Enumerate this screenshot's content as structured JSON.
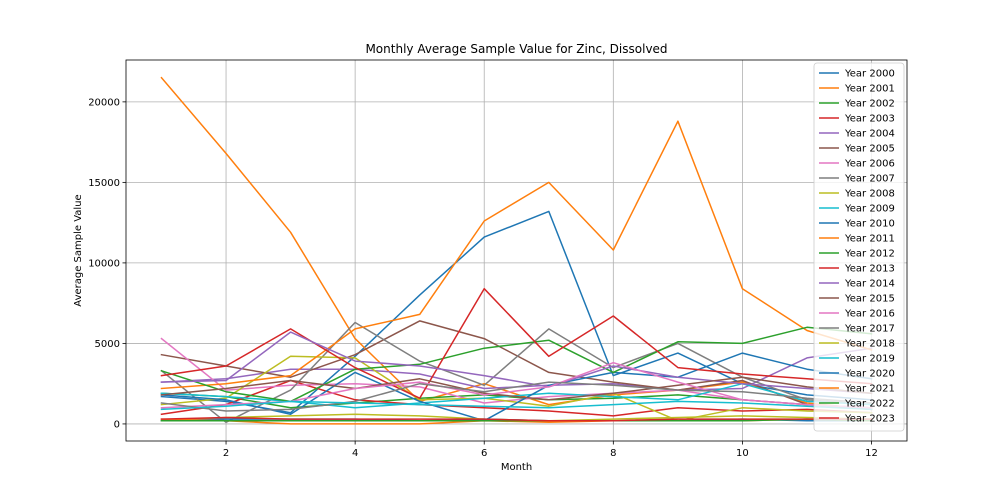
{
  "chart_data": {
    "type": "line",
    "title": "Monthly Average Sample Value for Zinc, Dissolved",
    "xlabel": "Month",
    "ylabel": "Average Sample Value",
    "xlim": [
      0.45,
      12.55
    ],
    "ylim": [
      -1060,
      22600
    ],
    "xticks": [
      2,
      4,
      6,
      8,
      10,
      12
    ],
    "yticks": [
      0,
      5000,
      10000,
      15000,
      20000
    ],
    "grid": true,
    "legend_position": "upper right",
    "x": [
      1,
      2,
      3,
      4,
      5,
      6,
      7,
      8,
      9,
      10,
      11,
      12
    ],
    "series": [
      {
        "name": "Year 2000",
        "color": "#1f77b4",
        "values": [
          1700,
          1400,
          700,
          4200,
          8000,
          11600,
          13200,
          3000,
          4400,
          2500,
          1800,
          1500
        ]
      },
      {
        "name": "Year 2001",
        "color": "#ff7f0e",
        "values": [
          21500,
          16800,
          11900,
          5300,
          1400,
          2500,
          1200,
          1800,
          2100,
          2600,
          1300,
          900
        ]
      },
      {
        "name": "Year 2002",
        "color": "#2ca02c",
        "values": [
          1900,
          1700,
          1000,
          1300,
          1600,
          1800,
          1500,
          1600,
          1800,
          1500,
          1200,
          1000
        ]
      },
      {
        "name": "Year 2003",
        "color": "#d62728",
        "values": [
          600,
          1200,
          2700,
          1500,
          1200,
          1000,
          800,
          500,
          1000,
          800,
          900,
          700
        ]
      },
      {
        "name": "Year 2004",
        "color": "#9467bd",
        "values": [
          2600,
          2800,
          3400,
          3400,
          3100,
          2200,
          2400,
          2500,
          2100,
          2200,
          4100,
          4700
        ]
      },
      {
        "name": "Year 2005",
        "color": "#8c564b",
        "values": [
          4300,
          3600,
          2900,
          4300,
          6400,
          5300,
          3200,
          2600,
          2100,
          2700,
          1200,
          900
        ]
      },
      {
        "name": "Year 2006",
        "color": "#e377c2",
        "values": [
          5300,
          2100,
          2400,
          2500,
          2300,
          1300,
          1700,
          1900,
          2100,
          1500,
          1200,
          1000
        ]
      },
      {
        "name": "Year 2007",
        "color": "#7f7f7f",
        "values": [
          3300,
          100,
          2100,
          6300,
          3900,
          2400,
          5900,
          3500,
          5000,
          2900,
          1500,
          1200
        ]
      },
      {
        "name": "Year 2008",
        "color": "#bcbd22",
        "values": [
          1200,
          1600,
          4200,
          4100,
          1500,
          1600,
          1100,
          1900,
          200,
          1000,
          800,
          700
        ]
      },
      {
        "name": "Year 2009",
        "color": "#17becf",
        "values": [
          1900,
          1700,
          1400,
          1000,
          1300,
          1600,
          1900,
          1700,
          1500,
          2500,
          1400,
          1200
        ]
      },
      {
        "name": "Year 2010",
        "color": "#1f77b4",
        "values": [
          1800,
          1500,
          600,
          3200,
          1400,
          200,
          2400,
          3200,
          2900,
          4400,
          3400,
          2800
        ]
      },
      {
        "name": "Year 2011",
        "color": "#ff7f0e",
        "values": [
          2200,
          2500,
          3000,
          5900,
          6800,
          12600,
          15000,
          10800,
          18800,
          8400,
          5800,
          4600
        ]
      },
      {
        "name": "Year 2012",
        "color": "#2ca02c",
        "values": [
          3300,
          2000,
          1400,
          3400,
          3700,
          4700,
          5200,
          3200,
          5100,
          5000,
          6000,
          5600
        ]
      },
      {
        "name": "Year 2013",
        "color": "#d62728",
        "values": [
          3000,
          3600,
          5900,
          3500,
          1600,
          8400,
          4200,
          6700,
          3500,
          3100,
          2800,
          2500
        ]
      },
      {
        "name": "Year 2014",
        "color": "#9467bd",
        "values": [
          2600,
          2700,
          5700,
          3900,
          3600,
          3000,
          2300,
          3600,
          2900,
          2500,
          2200,
          1900
        ]
      },
      {
        "name": "Year 2015",
        "color": "#8c564b",
        "values": [
          1800,
          2200,
          2700,
          2200,
          2800,
          1900,
          1500,
          1900,
          2400,
          2900,
          2300,
          1900
        ]
      },
      {
        "name": "Year 2016",
        "color": "#e377c2",
        "values": [
          1000,
          1200,
          1400,
          2200,
          2600,
          1800,
          2300,
          3800,
          2600,
          1500,
          1200,
          1000
        ]
      },
      {
        "name": "Year 2017",
        "color": "#7f7f7f",
        "values": [
          1300,
          800,
          900,
          1400,
          2500,
          2000,
          2600,
          2400,
          2100,
          2000,
          1600,
          1300
        ]
      },
      {
        "name": "Year 2018",
        "color": "#bcbd22",
        "values": [
          200,
          400,
          500,
          600,
          500,
          300,
          200,
          300,
          400,
          500,
          400,
          300
        ]
      },
      {
        "name": "Year 2019",
        "color": "#17becf",
        "values": [
          900,
          1100,
          1400,
          1300,
          1200,
          1100,
          1000,
          1200,
          1400,
          1300,
          1100,
          900
        ]
      },
      {
        "name": "Year 2020",
        "color": "#1f77b4",
        "values": [
          200,
          300,
          300,
          300,
          200,
          300,
          200,
          200,
          200,
          300,
          200,
          200
        ]
      },
      {
        "name": "Year 2021",
        "color": "#ff7f0e",
        "values": [
          300,
          200,
          0,
          0,
          0,
          200,
          100,
          200,
          200,
          200,
          300,
          200
        ]
      },
      {
        "name": "Year 2022",
        "color": "#2ca02c",
        "values": [
          200,
          200,
          200,
          200,
          200,
          200,
          200,
          200,
          200,
          200,
          300,
          200
        ]
      },
      {
        "name": "Year 2023",
        "color": "#d62728",
        "values": [
          300,
          400,
          300,
          300,
          300,
          300,
          200,
          200,
          300,
          300,
          300,
          300
        ]
      }
    ]
  }
}
